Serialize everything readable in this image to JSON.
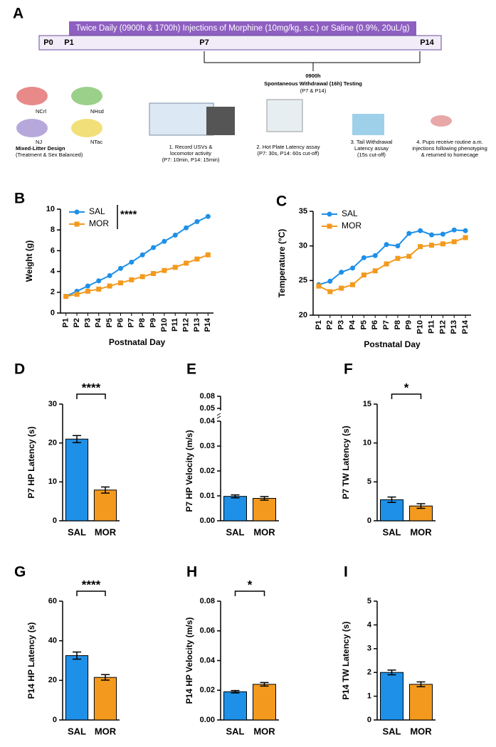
{
  "panel_a": {
    "label": "A",
    "banner": "Twice Daily (0900h & 1700h) Injections of Morphine (10mg/kg, s.c.) or Saline (0.9%, 20uL/g)",
    "timeline": [
      "P0",
      "P1",
      "P7",
      "P14"
    ],
    "testing": [
      "0900h",
      "Spontaneous Withdrawal (16h) Testing",
      "(P7 & P14)"
    ],
    "strains": [
      "NCrl",
      "NHsd",
      "NJ",
      "NTac"
    ],
    "design": "Mixed-Litter Design",
    "design_note": "(Treatment & Sex Balanced)",
    "steps": [
      [
        "1.  Record USVs &",
        "locomotor activity",
        "(P7: 10min, P14: 15min)"
      ],
      [
        "2. Hot Plate Latency assay",
        "(P7: 30s, P14: 60s cut-off)"
      ],
      [
        "3. Tail Withdrawal",
        "Latency assay",
        "(15s cut-off)"
      ],
      [
        "4. Pups receive routine a.m.",
        "injections following phenotyping",
        "& returned to homecage"
      ]
    ]
  },
  "chart_data": [
    {
      "label": "B",
      "type": "line",
      "xlabel": "Postnatal Day",
      "ylabel": "Weight (g)",
      "annotation": "****",
      "categories": [
        "P1",
        "P2",
        "P3",
        "P4",
        "P5",
        "P6",
        "P7",
        "P8",
        "P9",
        "P10",
        "P11",
        "P12",
        "P13",
        "P14"
      ],
      "ylim": [
        0,
        10
      ],
      "yticks": [
        0,
        2,
        4,
        6,
        8,
        10
      ],
      "series": [
        {
          "name": "SAL",
          "color": "#1e90e8",
          "marker": "circle",
          "values": [
            1.6,
            2.1,
            2.6,
            3.1,
            3.6,
            4.3,
            4.9,
            5.6,
            6.3,
            6.9,
            7.5,
            8.2,
            8.8,
            9.3
          ]
        },
        {
          "name": "MOR",
          "color": "#f39a1e",
          "marker": "square",
          "values": [
            1.6,
            1.8,
            2.1,
            2.3,
            2.6,
            2.9,
            3.2,
            3.5,
            3.8,
            4.1,
            4.4,
            4.8,
            5.2,
            5.6
          ]
        }
      ]
    },
    {
      "label": "C",
      "type": "line",
      "xlabel": "Postnatal Day",
      "ylabel": "Temperature (°C)",
      "categories": [
        "P1",
        "P2",
        "P3",
        "P4",
        "P5",
        "P6",
        "P7",
        "P8",
        "P9",
        "P10",
        "P11",
        "P12",
        "P13",
        "P14"
      ],
      "ylim": [
        20,
        35
      ],
      "yticks": [
        20,
        25,
        30,
        35
      ],
      "series": [
        {
          "name": "SAL",
          "color": "#1e90e8",
          "marker": "circle",
          "values": [
            24.4,
            24.9,
            26.2,
            26.8,
            28.3,
            28.6,
            30.2,
            30.0,
            31.8,
            32.2,
            31.6,
            31.7,
            32.3,
            32.2
          ]
        },
        {
          "name": "MOR",
          "color": "#f39a1e",
          "marker": "square",
          "values": [
            24.2,
            23.4,
            23.9,
            24.4,
            25.8,
            26.4,
            27.4,
            28.2,
            28.5,
            29.9,
            30.1,
            30.3,
            30.6,
            31.2
          ]
        }
      ]
    },
    {
      "label": "D",
      "type": "bar",
      "ylabel": "P7 HP Latency (s)",
      "annotation": "****",
      "categories": [
        "SAL",
        "MOR"
      ],
      "values": [
        21,
        7.9
      ],
      "errors": [
        0.9,
        0.8
      ],
      "colors": [
        "#1e90e8",
        "#f39a1e"
      ],
      "ylim": [
        0,
        30
      ],
      "yticks": [
        0,
        10,
        20,
        30
      ]
    },
    {
      "label": "E",
      "type": "bar",
      "ylabel": "P7 HP Velocity (m/s)",
      "categories": [
        "SAL",
        "MOR"
      ],
      "values": [
        0.0098,
        0.009
      ],
      "errors": [
        0.0006,
        0.0007
      ],
      "colors": [
        "#1e90e8",
        "#f39a1e"
      ],
      "ylim": [
        0,
        0.04
      ],
      "yticks": [
        {
          "value": 0,
          "label": "0.00"
        },
        0.01,
        0.02,
        0.03,
        0.04
      ],
      "break_ticks": [
        0.05,
        0.08
      ]
    },
    {
      "label": "F",
      "type": "bar",
      "ylabel": "P7 TW Latency (s)",
      "annotation": "*",
      "categories": [
        "SAL",
        "MOR"
      ],
      "values": [
        2.7,
        1.9
      ],
      "errors": [
        0.35,
        0.3
      ],
      "colors": [
        "#1e90e8",
        "#f39a1e"
      ],
      "ylim": [
        0,
        15
      ],
      "yticks": [
        0,
        5,
        10,
        15
      ]
    },
    {
      "label": "G",
      "type": "bar",
      "ylabel": "P14 HP Latency (s)",
      "annotation": "****",
      "categories": [
        "SAL",
        "MOR"
      ],
      "values": [
        32.5,
        21.5
      ],
      "errors": [
        1.8,
        1.4
      ],
      "colors": [
        "#1e90e8",
        "#f39a1e"
      ],
      "ylim": [
        0,
        60
      ],
      "yticks": [
        0,
        20,
        40,
        60
      ]
    },
    {
      "label": "H",
      "type": "bar",
      "ylabel": "P14 HP Velocity (m/s)",
      "annotation": "*",
      "categories": [
        "SAL",
        "MOR"
      ],
      "values": [
        0.019,
        0.024
      ],
      "errors": [
        0.0008,
        0.0012
      ],
      "colors": [
        "#1e90e8",
        "#f39a1e"
      ],
      "ylim": [
        0,
        0.08
      ],
      "yticks": [
        {
          "value": 0,
          "label": "0.00"
        },
        0.02,
        0.04,
        0.06,
        0.08
      ]
    },
    {
      "label": "I",
      "type": "bar",
      "ylabel": "P14 TW Latency (s)",
      "categories": [
        "SAL",
        "MOR"
      ],
      "values": [
        2.0,
        1.5
      ],
      "errors": [
        0.1,
        0.1
      ],
      "colors": [
        "#1e90e8",
        "#f39a1e"
      ],
      "ylim": [
        0,
        5
      ],
      "yticks": [
        0,
        1,
        2,
        3,
        4,
        5
      ]
    }
  ]
}
